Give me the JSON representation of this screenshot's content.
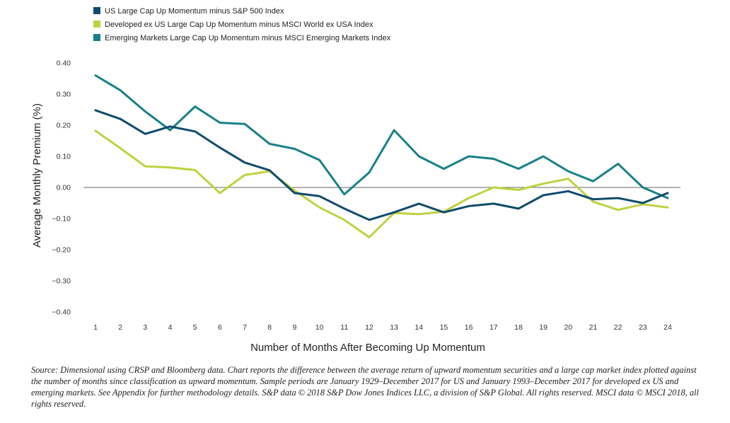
{
  "chart_data": {
    "type": "line",
    "title": "",
    "xlabel": "Number of Months After Becoming Up Momentum",
    "ylabel": "Average Monthly Premium (%)",
    "x": [
      1,
      2,
      3,
      4,
      5,
      6,
      7,
      8,
      9,
      10,
      11,
      12,
      13,
      14,
      15,
      16,
      17,
      18,
      19,
      20,
      21,
      22,
      23,
      24
    ],
    "ylim": [
      -0.4,
      0.4
    ],
    "yticks": [
      0.4,
      0.3,
      0.2,
      0.1,
      0.0,
      -0.1,
      -0.2,
      -0.3,
      -0.4
    ],
    "ytick_labels": [
      "0.40",
      "0.30",
      "0.20",
      "0.10",
      "0.00",
      "−0.10",
      "−0.20",
      "−0.30",
      "−0.40"
    ],
    "legend_position": "top-left",
    "grid": false,
    "series": [
      {
        "name": "US Large Cap Up Momentum minus S&P 500 Index",
        "color": "#0f4c6b",
        "values": [
          0.248,
          0.22,
          0.172,
          0.196,
          0.18,
          0.128,
          0.08,
          0.055,
          -0.018,
          -0.028,
          -0.068,
          -0.104,
          -0.08,
          -0.052,
          -0.08,
          -0.06,
          -0.052,
          -0.068,
          -0.025,
          -0.012,
          -0.038,
          -0.034,
          -0.05,
          -0.018
        ]
      },
      {
        "name": "Developed ex US Large Cap Up Momentum minus MSCI World ex USA Index",
        "color": "#bfd240",
        "values": [
          0.182,
          0.126,
          0.068,
          0.064,
          0.056,
          -0.018,
          0.04,
          0.052,
          -0.01,
          -0.064,
          -0.104,
          -0.16,
          -0.082,
          -0.086,
          -0.078,
          -0.034,
          0.0,
          -0.008,
          0.012,
          0.028,
          -0.046,
          -0.072,
          -0.054,
          -0.064
        ]
      },
      {
        "name": "Emerging Markets Large Cap Up Momentum minus MSCI Emerging Markets Index",
        "color": "#178088",
        "values": [
          0.36,
          0.312,
          0.244,
          0.184,
          0.26,
          0.208,
          0.204,
          0.14,
          0.124,
          0.088,
          -0.022,
          0.048,
          0.184,
          0.1,
          0.06,
          0.1,
          0.092,
          0.06,
          0.1,
          0.052,
          0.02,
          0.076,
          0.0,
          -0.034
        ]
      }
    ]
  },
  "source_note": "Source: Dimensional using CRSP and Bloomberg data. Chart reports the difference between the average return of upward momentum securities and a large cap market index plotted against the number of months since classification as upward momentum. Sample periods are January 1929–December 2017 for US and January 1993–December 2017 for developed ex US and emerging markets. See Appendix for further methodology details. S&P data © 2018 S&P Dow Jones Indices LLC, a division of S&P Global. All rights reserved. MSCI data © MSCI 2018, all rights reserved."
}
